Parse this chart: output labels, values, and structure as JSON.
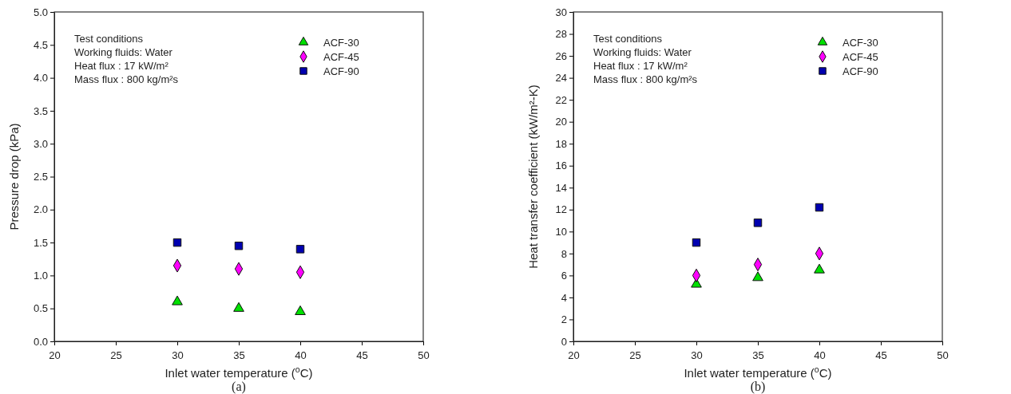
{
  "chart_data": [
    {
      "type": "scatter",
      "xlabel": "Inlet water temperature ($^{o}$C)",
      "ylabel": "Pressure drop (kPa)",
      "x": [
        30,
        35,
        40
      ],
      "xlim": [
        20,
        50
      ],
      "xticks": [
        20,
        25,
        30,
        35,
        40,
        45,
        50
      ],
      "ylim": [
        0,
        5
      ],
      "yticks": [
        {
          "value": 0,
          "label": "0.0"
        },
        0.5,
        {
          "value": 1,
          "label": "1.0"
        },
        1.5,
        {
          "value": 2,
          "label": "2.0"
        },
        2.5,
        {
          "value": 3,
          "label": "3.0"
        },
        3.5,
        {
          "value": 4,
          "label": "4.0"
        },
        4.5,
        {
          "value": 5,
          "label": "5.0"
        }
      ],
      "legend": "top right",
      "grid": false,
      "series": [
        {
          "name": "ACF-30",
          "color": "#00e000",
          "marker": "triangle",
          "values": [
            0.6,
            0.5,
            0.45
          ]
        },
        {
          "name": "ACF-45",
          "color": "#ff00ff",
          "marker": "diamond",
          "values": [
            1.15,
            1.1,
            1.05
          ]
        },
        {
          "name": "ACF-90",
          "color": "#0000b0",
          "marker": "square",
          "values": [
            1.5,
            1.45,
            1.4
          ]
        }
      ],
      "annotations": [
        "Test conditions",
        "Working fluids: Water",
        "Heat flux : 17 kW/m²",
        "Mass flux : 800 kg/m²s",
        "(a)"
      ]
    },
    {
      "type": "scatter",
      "xlabel": "Inlet water temperature ($^{o}$C)",
      "ylabel": "Heat transfer coefficient (kW/m²-K)",
      "x": [
        30,
        35,
        40
      ],
      "xlim": [
        20,
        50
      ],
      "xticks": [
        20,
        25,
        30,
        35,
        40,
        45,
        50
      ],
      "ylim": [
        0,
        30
      ],
      "yticks": [
        0,
        2,
        4,
        6,
        8,
        10,
        12,
        14,
        16,
        18,
        20,
        22,
        24,
        26,
        28,
        30
      ],
      "legend": "top right",
      "grid": false,
      "series": [
        {
          "name": "ACF-30",
          "color": "#00e000",
          "marker": "triangle",
          "values": [
            5.2,
            5.8,
            6.5
          ]
        },
        {
          "name": "ACF-45",
          "color": "#ff00ff",
          "marker": "diamond",
          "values": [
            6.0,
            7.0,
            8.0
          ]
        },
        {
          "name": "ACF-90",
          "color": "#0000b0",
          "marker": "square",
          "values": [
            9.0,
            10.8,
            12.2
          ]
        }
      ],
      "annotations": [
        "Test conditions",
        "Working fluids: Water",
        "Heat flux : 17 kW/m²",
        "Mass flux : 800 kg/m²s",
        "(b)"
      ]
    }
  ]
}
